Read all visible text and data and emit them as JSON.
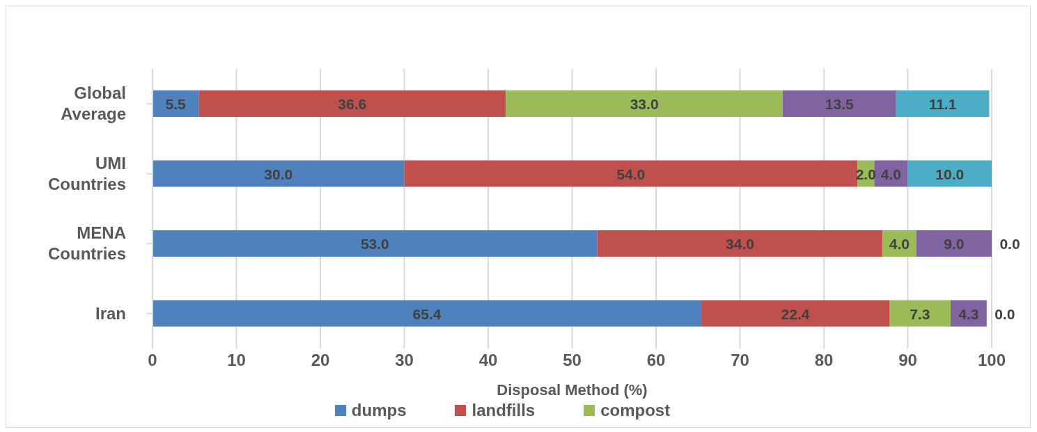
{
  "chart_data": {
    "type": "bar",
    "orientation": "horizontal",
    "stacked": true,
    "xlabel": "Disposal Method (%)",
    "categories": [
      "Global Average",
      "UMI Countries",
      "MENA Countries",
      "Iran"
    ],
    "series": [
      {
        "name": "dumps",
        "color": "#4f81bd",
        "values": [
          5.5,
          30,
          53,
          65.4
        ],
        "value_labels": [
          "5.5",
          "30.0",
          "53.0",
          "65.4"
        ]
      },
      {
        "name": "landfills",
        "color": "#c0504d",
        "values": [
          36.6,
          54,
          34,
          22.4
        ],
        "value_labels": [
          "36.6",
          "54.0",
          "34.0",
          "22.4"
        ]
      },
      {
        "name": "compost",
        "color": "#9bbb59",
        "values": [
          33,
          2,
          4,
          7.3
        ],
        "value_labels": [
          "33.0",
          "2.0",
          "4.0",
          "7.3"
        ]
      },
      {
        "color": "#8064a2",
        "values": [
          13.5,
          4,
          9,
          4.3
        ],
        "value_labels": [
          "13.5",
          "4.0",
          "9.0",
          "4.3"
        ]
      },
      {
        "color": "#4bacc6",
        "values": [
          11.1,
          10,
          0,
          0
        ],
        "value_labels": [
          "11.1",
          "10.0",
          "0.0",
          "0.0"
        ]
      }
    ],
    "xlim": [
      0,
      100
    ],
    "xticks": [
      0,
      10,
      20,
      30,
      40,
      50,
      60,
      70,
      80,
      90,
      100
    ],
    "grid": "x",
    "legend": "bottom"
  }
}
